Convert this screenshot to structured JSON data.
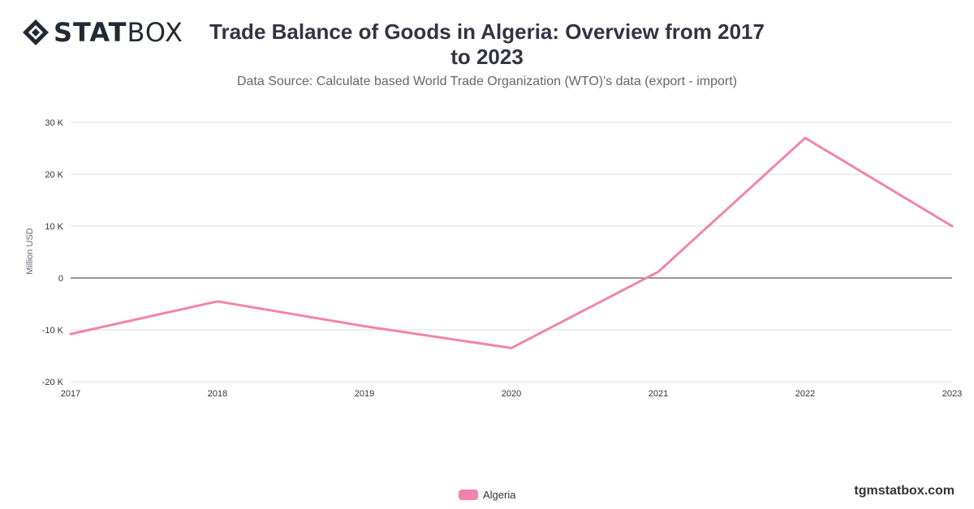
{
  "brand": {
    "bold": "STAT",
    "light": "BOX",
    "mark": "diamond-logo-icon"
  },
  "header": {
    "title": "Trade Balance of Goods in Algeria: Overview from 2017 to 2023",
    "subtitle": "Data Source: Calculate based World Trade Organization (WTO)'s data (export - import)"
  },
  "credit": "tgmstatbox.com",
  "colors": {
    "series": "#f283ad",
    "grid": "#dddddd",
    "zero": "#333333"
  },
  "chart_data": {
    "type": "line",
    "title": "Trade Balance of Goods in Algeria: Overview from 2017 to 2023",
    "ylabel": "Million USD",
    "xlabel": "",
    "x": [
      "2017",
      "2018",
      "2019",
      "2020",
      "2021",
      "2022",
      "2023"
    ],
    "series": [
      {
        "name": "Algeria",
        "values": [
          -10800,
          -4500,
          -9300,
          -13500,
          1200,
          27000,
          10000
        ]
      }
    ],
    "ylim": [
      -20000,
      30000
    ],
    "yticks": [
      30000,
      20000,
      10000,
      0,
      -10000,
      -20000
    ],
    "ytick_labels": [
      "30 K",
      "20 K",
      "10 K",
      "0",
      "-10 K",
      "-20 K"
    ],
    "grid": true,
    "legend": "bottom-center"
  }
}
